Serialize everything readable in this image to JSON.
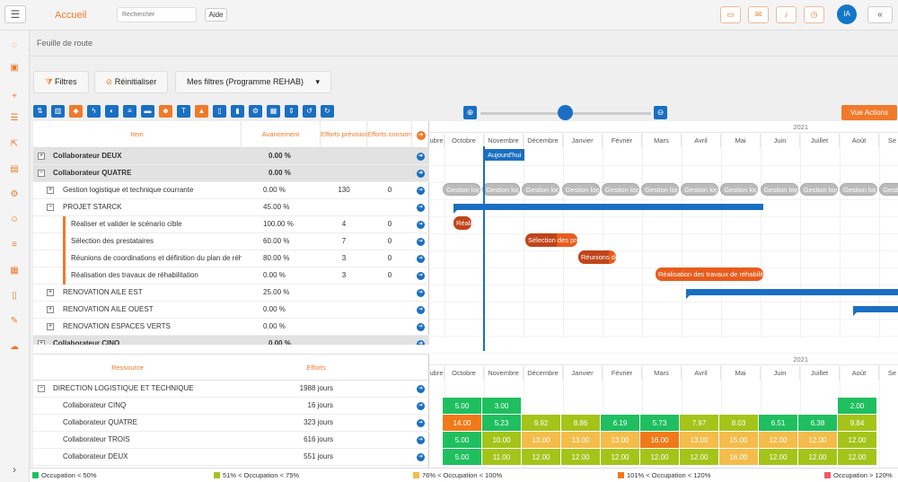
{
  "app": {
    "title": "Accueil",
    "search_placeholder": "Rechercher",
    "help": "Aide",
    "avatar": "IA",
    "collapse": "«"
  },
  "page": {
    "title": "Feuille de route"
  },
  "filters": {
    "filters": "Filtres",
    "reset": "Réinitialiser",
    "my_filters": "Mes filtres (Programme REHAB)"
  },
  "actions": {
    "vue_actions": "Vue Actions"
  },
  "timeline": {
    "year": "2021",
    "months": [
      "ubre",
      "Octobre",
      "Novembre",
      "Décembre",
      "Janvier",
      "Février",
      "Mars",
      "Avril",
      "Mai",
      "Juin",
      "Juillet",
      "Août",
      "Se"
    ],
    "today": "Aujourd'hui"
  },
  "task_table": {
    "headers": {
      "item": "Item",
      "progress": "Avancement",
      "planned": "Efforts prévisionnels",
      "consumed": "Efforts consommés"
    },
    "rows": [
      {
        "name": "Collaborateur DEUX",
        "progress": "0.00 %",
        "planned": "",
        "consumed": "",
        "type": "group",
        "pm": "+"
      },
      {
        "name": "Collaborateur QUATRE",
        "progress": "0.00 %",
        "planned": "",
        "consumed": "",
        "type": "group",
        "pm": "−"
      },
      {
        "name": "Gestion logistique et technique courrante",
        "progress": "0.00 %",
        "planned": "130",
        "consumed": "0",
        "type": "sub",
        "pm": "+"
      },
      {
        "name": "PROJET STARCK",
        "progress": "45.00 %",
        "planned": "",
        "consumed": "",
        "type": "sub",
        "pm": "−"
      },
      {
        "name": "Réaliser et valider le scénario cible",
        "progress": "100.00 %",
        "planned": "4",
        "consumed": "0",
        "type": "task"
      },
      {
        "name": "Sélection des prestataires",
        "progress": "60.00 %",
        "planned": "7",
        "consumed": "0",
        "type": "task"
      },
      {
        "name": "Réunions de coordinations et définition du plan de réhabilitation",
        "progress": "80.00 %",
        "planned": "3",
        "consumed": "0",
        "type": "task"
      },
      {
        "name": "Réalisation des travaux de réhabilitation",
        "progress": "0.00 %",
        "planned": "3",
        "consumed": "0",
        "type": "task"
      },
      {
        "name": "RENOVATION AILE EST",
        "progress": "25.00 %",
        "planned": "",
        "consumed": "",
        "type": "sub",
        "pm": "+"
      },
      {
        "name": "RENOVATION AILE OUEST",
        "progress": "0.00 %",
        "planned": "",
        "consumed": "",
        "type": "sub",
        "pm": "+"
      },
      {
        "name": "RENOVATION ESPACES VERTS",
        "progress": "0.00 %",
        "planned": "",
        "consumed": "",
        "type": "sub",
        "pm": "+"
      },
      {
        "name": "Collaborateur CINQ",
        "progress": "0.00 %",
        "planned": "",
        "consumed": "",
        "type": "group",
        "pm": "+"
      }
    ]
  },
  "gantt": {
    "recurring_label": "Gestion logistique et technique courrante",
    "tasks": [
      {
        "label": "Réaliser et valider le scénario cible",
        "progress": 1.0
      },
      {
        "label": "Sélection des prestataires",
        "progress": 0.6
      },
      {
        "label": "Réunions de coordinations et définition du plan de réhabilitation",
        "progress": 0.8
      },
      {
        "label": "Réalisation des travaux de réhabilitation",
        "progress": 0.0
      }
    ]
  },
  "resource_table": {
    "headers": {
      "resource": "Ressource",
      "efforts": "Efforts"
    },
    "rows": [
      {
        "name": "DIRECTION LOGISTIQUE ET TECHNIQUE",
        "efforts": "1988 jours",
        "type": "group",
        "pm": "−"
      },
      {
        "name": "Collaborateur CINQ",
        "efforts": "16 jours",
        "type": "res"
      },
      {
        "name": "Collaborateur QUATRE",
        "efforts": "323 jours",
        "type": "res"
      },
      {
        "name": "Collaborateur TROIS",
        "efforts": "616 jours",
        "type": "res"
      },
      {
        "name": "Collaborateur DEUX",
        "efforts": "551 jours",
        "type": "res"
      }
    ]
  },
  "occupancy": {
    "levels": [
      "",
      "<50",
      "51-75",
      "76-100",
      "101-120",
      ">120"
    ],
    "colors": {
      "<50": "#1fbf5f",
      "51-75": "#a4c41a",
      "76-100": "#f4bc4a",
      "101-120": "#f07a18",
      ">120": "#ee5a6a"
    },
    "rows": [
      [
        [
          1,
          "5.00"
        ],
        [
          1,
          "3.00"
        ],
        [
          0,
          ""
        ],
        [
          0,
          ""
        ],
        [
          0,
          ""
        ],
        [
          0,
          ""
        ],
        [
          0,
          ""
        ],
        [
          0,
          ""
        ],
        [
          0,
          ""
        ],
        [
          0,
          ""
        ],
        [
          1,
          "2.00"
        ],
        [
          0,
          ""
        ]
      ],
      [
        [
          4,
          "14.00"
        ],
        [
          1,
          "5.23"
        ],
        [
          2,
          "9.92"
        ],
        [
          2,
          "8.86"
        ],
        [
          1,
          "6.19"
        ],
        [
          1,
          "5.73"
        ],
        [
          2,
          "7.97"
        ],
        [
          2,
          "8.03"
        ],
        [
          1,
          "6.51"
        ],
        [
          1,
          "6.38"
        ],
        [
          2,
          "9.84"
        ],
        [
          0,
          ""
        ]
      ],
      [
        [
          1,
          "5.00"
        ],
        [
          2,
          "10.00"
        ],
        [
          3,
          "13.00"
        ],
        [
          3,
          "13.00"
        ],
        [
          3,
          "13.00"
        ],
        [
          4,
          "16.00"
        ],
        [
          3,
          "13.00"
        ],
        [
          3,
          "15.00"
        ],
        [
          3,
          "12.00"
        ],
        [
          3,
          "12.00"
        ],
        [
          2,
          "12.00"
        ],
        [
          0,
          ""
        ]
      ],
      [
        [
          1,
          "5.00"
        ],
        [
          2,
          "11.00"
        ],
        [
          2,
          "12.00"
        ],
        [
          2,
          "12.00"
        ],
        [
          2,
          "12.00"
        ],
        [
          2,
          "12.00"
        ],
        [
          2,
          "12.00"
        ],
        [
          3,
          "16.00"
        ],
        [
          2,
          "12.00"
        ],
        [
          2,
          "12.00"
        ],
        [
          2,
          "12.00"
        ],
        [
          0,
          ""
        ]
      ]
    ]
  },
  "legend": [
    {
      "label": "Occupation < 50%",
      "color": "#1fbf5f"
    },
    {
      "label": "51% < Occupation < 75%",
      "color": "#a4c41a"
    },
    {
      "label": "76% < Occupation < 100%",
      "color": "#f4bc4a"
    },
    {
      "label": "101% < Occupation < 120%",
      "color": "#f07a18"
    },
    {
      "label": "Occupation > 120%",
      "color": "#ee5a6a"
    }
  ]
}
